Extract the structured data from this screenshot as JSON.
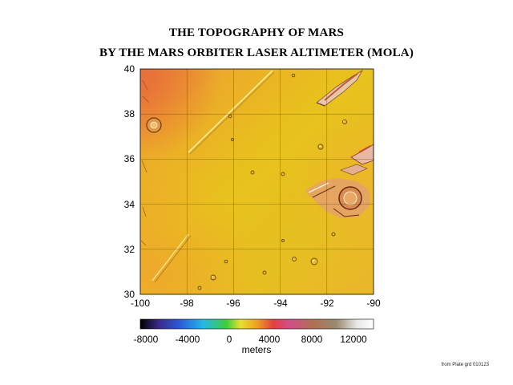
{
  "title_line1": "THE TOPOGRAPHY OF MARS",
  "title_line2": "BY THE MARS ORBITER LASER ALTIMETER (MOLA)",
  "map": {
    "x_ticks": [
      "-100",
      "-98",
      "-96",
      "-94",
      "-92",
      "-90"
    ],
    "y_ticks": [
      "40",
      "38",
      "36",
      "34",
      "32",
      "30"
    ],
    "xlim": [
      -100,
      -90
    ],
    "ylim": [
      30,
      40
    ],
    "grid": true
  },
  "colorbar": {
    "ticks": [
      "-8000",
      "-4000",
      "0",
      "4000",
      "8000",
      "12000"
    ],
    "range": [
      -8000,
      12000
    ],
    "units": "meters",
    "colors": [
      "#000000",
      "#3a2a8a",
      "#2a5cd8",
      "#22b8e8",
      "#3fcf3a",
      "#e8e030",
      "#f0a020",
      "#e24040",
      "#d04f8a",
      "#b07050",
      "#9a8a70",
      "#e8e8e8",
      "#ffffff"
    ]
  },
  "credit": "from Plate grd 010123"
}
